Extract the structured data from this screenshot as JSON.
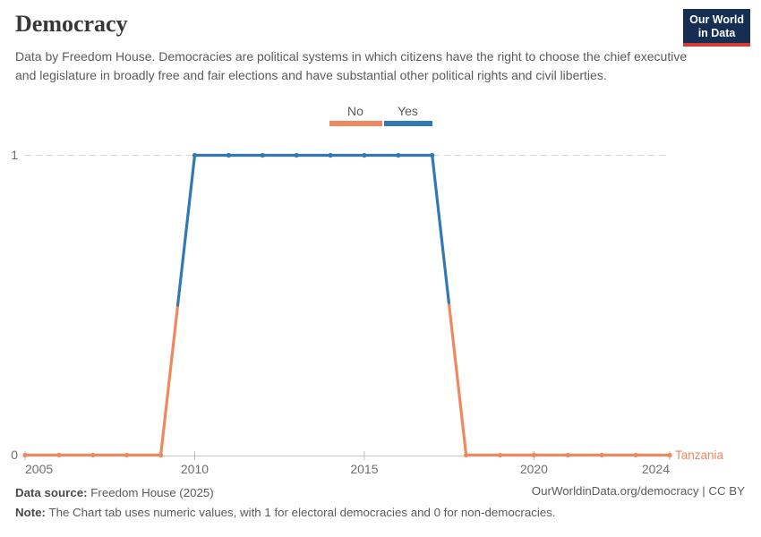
{
  "header": {
    "title": "Democracy",
    "subtitle": "Data by Freedom House. Democracies are political systems in which citizens have the right to choose the chief executive and legislature in broadly free and fair elections and have substantial other political rights and civil liberties.",
    "logo": {
      "line1": "Our World",
      "line2": "in Data",
      "bg_color": "#152E52",
      "accent_color": "#D73C32"
    }
  },
  "legend": {
    "items": [
      {
        "label": "No",
        "color": "#F0885F"
      },
      {
        "label": "Yes",
        "color": "#3179B5"
      }
    ]
  },
  "chart_data": {
    "type": "line",
    "title": "Democracy",
    "entity": "Tanzania",
    "x": [
      2005,
      2006,
      2007,
      2008,
      2009,
      2010,
      2011,
      2012,
      2013,
      2014,
      2015,
      2016,
      2017,
      2018,
      2019,
      2020,
      2021,
      2022,
      2023,
      2024
    ],
    "values": [
      0,
      0,
      0,
      0,
      0,
      1,
      1,
      1,
      1,
      1,
      1,
      1,
      1,
      0,
      0,
      0,
      0,
      0,
      0,
      0
    ],
    "value_labels": {
      "0": "No",
      "1": "Yes"
    },
    "value_colors": {
      "0": "#F0885F",
      "1": "#3179B5"
    },
    "xticks": [
      2005,
      2010,
      2015,
      2020,
      2024
    ],
    "yticks": [
      0,
      1
    ],
    "ylim": [
      0,
      1
    ],
    "xlim": [
      2005,
      2024
    ],
    "grid": "dashed horizontal gridline at y=1, solid axis line at y=0",
    "legend_position": "top-center",
    "colors": {
      "gridline": "#D9D9D9",
      "axis_line": "#C6C6C6",
      "tick": "#BDBDBD",
      "tick_label": "#6E6E6E"
    }
  },
  "footer": {
    "source_label": "Data source:",
    "source_value": "Freedom House (2025)",
    "note_label": "Note:",
    "note_value": "The Chart tab uses numeric values, with 1 for electoral democracies and 0 for non-democracies.",
    "citation": "OurWorldinData.org/democracy | CC BY"
  }
}
